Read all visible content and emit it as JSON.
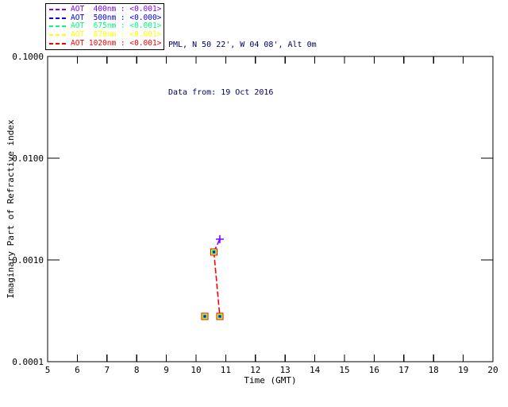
{
  "header": {
    "site_line": "PML, N 50 22', W 04 08', Alt 0m",
    "date_line": "Data from: 19 Oct 2016",
    "text_color": "#000066"
  },
  "legend": {
    "items": [
      {
        "name": "aot-400nm",
        "label": "AOT  400nm : <0.001>",
        "wavelength": "400nm",
        "value": "<0.001>",
        "color": "#7F00FF"
      },
      {
        "name": "aot-500nm",
        "label": "AOT  500nm : <0.000>",
        "wavelength": "500nm",
        "value": "<0.000>",
        "color": "#0000FF"
      },
      {
        "name": "aot-675nm",
        "label": "AOT  675nm : <0.001>",
        "wavelength": "675nm",
        "value": "<0.001>",
        "color": "#00FF7F"
      },
      {
        "name": "aot-870nm",
        "label": "AOT  870nm : <0.001>",
        "wavelength": "870nm",
        "value": "<0.001>",
        "color": "#FFFF00"
      },
      {
        "name": "aot-1020nm",
        "label": "AOT 1020nm : <0.001>",
        "wavelength": "1020nm",
        "value": "<0.001>",
        "color": "#FF0000"
      }
    ]
  },
  "chart_data": {
    "type": "scatter",
    "title": "PML, N 50 22', W 04 08', Alt 0m",
    "subtitle": "Data from: 19 Oct 2016",
    "xlabel": "Time (GMT)",
    "ylabel": "Imaginary Part of Refractive index",
    "xlim": [
      5,
      20
    ],
    "ylim": [
      0.0001,
      0.1
    ],
    "yscale": "log",
    "grid": false,
    "x_ticks": [
      5,
      6,
      7,
      8,
      9,
      10,
      11,
      12,
      13,
      14,
      15,
      16,
      17,
      18,
      19,
      20
    ],
    "y_tick_values": [
      0.1,
      0.01,
      0.001,
      0.0001
    ],
    "y_tick_labels": [
      "0.1000",
      "0.0100",
      "0.0010",
      "0.0001"
    ],
    "axis_color": "#000000",
    "marker_layers": [
      "#FF0000",
      "#FFFF00",
      "#00FF7F",
      "#0000FF"
    ],
    "points": [
      {
        "time": 10.3,
        "value": 0.00028,
        "marker": "stacked-square",
        "series": "all-wavelengths"
      },
      {
        "time": 10.6,
        "value": 0.0012,
        "marker": "stacked-square",
        "series": "all-wavelengths"
      },
      {
        "time": 10.8,
        "value": 0.00028,
        "marker": "stacked-square",
        "series": "all-wavelengths"
      },
      {
        "time": 10.8,
        "value": 0.0016,
        "marker": "plus",
        "series": "AOT 400nm",
        "color": "#7F00FF"
      }
    ],
    "segments": [
      {
        "series": "AOT 1020nm",
        "color": "#FF0000",
        "from": {
          "time": 10.6,
          "value": 0.0012
        },
        "to": {
          "time": 10.8,
          "value": 0.00028
        }
      },
      {
        "series": "AOT 400nm",
        "color": "#7F00FF",
        "from": {
          "time": 10.6,
          "value": 0.0012
        },
        "to": {
          "time": 10.8,
          "value": 0.0016
        }
      }
    ]
  }
}
